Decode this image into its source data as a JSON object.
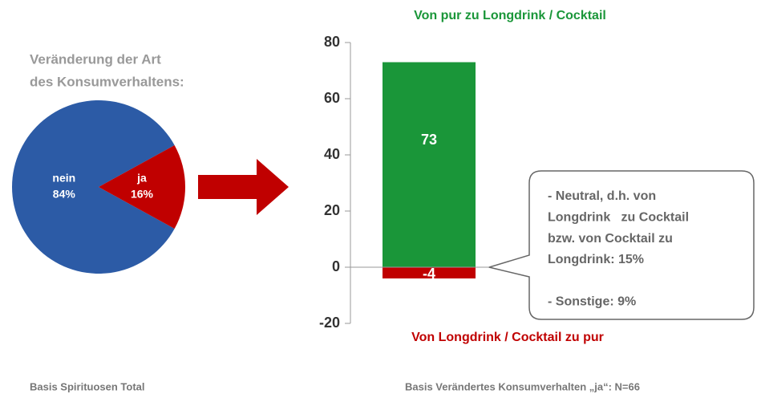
{
  "chart_data": [
    {
      "type": "pie",
      "title": [
        "Veränderung der Art",
        "des Konsumverhaltens:"
      ],
      "categories": [
        "nein",
        "ja"
      ],
      "values": [
        84,
        16
      ],
      "value_labels": [
        "84%",
        "16%"
      ],
      "colors": [
        "#2c5ba6",
        "#c00000"
      ]
    },
    {
      "type": "stacked_bar",
      "series": [
        {
          "name": "Von pur zu Longdrink / Cocktail",
          "color": "#1a9639",
          "values": [
            73
          ]
        },
        {
          "name": "Von Longdrink / Cocktail zu pur",
          "color": "#c00000",
          "values": [
            -4
          ]
        }
      ],
      "ylim": [
        -20,
        80
      ],
      "yticks": [
        -20,
        0,
        20,
        40,
        60,
        80
      ],
      "annotation": [
        [
          "- Neutral, d.h. von",
          "Longdrink   zu Cocktail",
          "bzw. von Cocktail zu",
          "Longdrink: 15%"
        ],
        [
          "- Sonstige: 9%"
        ]
      ]
    }
  ],
  "footnotes": [
    "Basis Spirituosen Total",
    "Basis Verändertes Konsumverhalten „ja“: N=66"
  ]
}
